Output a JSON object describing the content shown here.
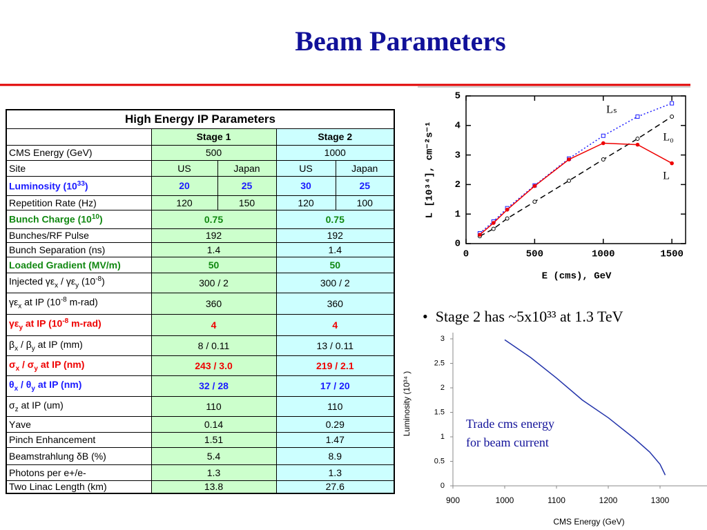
{
  "title": "Beam Parameters",
  "table": {
    "title": "High Energy IP Parameters",
    "columns": [
      "Stage 1",
      "Stage 2"
    ],
    "rows": [
      {
        "label": "CMS Energy (GeV)",
        "stage1": [
          "500"
        ],
        "stage2": [
          "1000"
        ]
      },
      {
        "label": "Site",
        "stage1": [
          "US",
          "Japan"
        ],
        "stage2": [
          "US",
          "Japan"
        ]
      },
      {
        "label": [
          {
            "text": "Luminosity (10"
          },
          {
            "sup": "33"
          },
          {
            "text": ")"
          }
        ],
        "stage1": [
          "20",
          "25"
        ],
        "stage2": [
          "30",
          "25"
        ],
        "color": "#1a1aff"
      },
      {
        "label": "Repetition Rate (Hz)",
        "stage1": [
          "120",
          "150"
        ],
        "stage2": [
          "120",
          "100"
        ]
      },
      {
        "label": [
          {
            "text": "Bunch Charge (10"
          },
          {
            "sup": "10"
          },
          {
            "text": ")"
          }
        ],
        "stage1": [
          "0.75"
        ],
        "stage2": [
          "0.75"
        ],
        "color": "#118811"
      },
      {
        "label": "Bunches/RF Pulse",
        "stage1": [
          "192"
        ],
        "stage2": [
          "192"
        ]
      },
      {
        "label": "Bunch Separation (ns)",
        "stage1": [
          "1.4"
        ],
        "stage2": [
          "1.4"
        ]
      },
      {
        "label": "Loaded Gradient (MV/m)",
        "stage1": [
          "50"
        ],
        "stage2": [
          "50"
        ],
        "color": "#118811"
      },
      {
        "label": [
          {
            "text": "Injected γε"
          },
          {
            "sub": "x"
          },
          {
            "text": " / γε"
          },
          {
            "sub": "y"
          },
          {
            "text": " (10"
          },
          {
            "sup": "-8"
          },
          {
            "text": ")"
          }
        ],
        "stage1": [
          "300 / 2"
        ],
        "stage2": [
          "300 / 2"
        ]
      },
      {
        "label": [
          {
            "text": "γε"
          },
          {
            "sub": "x"
          },
          {
            "text": " at IP (10"
          },
          {
            "sup": "-8"
          },
          {
            "text": " m-rad)"
          }
        ],
        "stage1": [
          "360"
        ],
        "stage2": [
          "360"
        ]
      },
      {
        "label": [
          {
            "text": "γε"
          },
          {
            "sub": "y"
          },
          {
            "text": " at IP (10"
          },
          {
            "sup": "-8"
          },
          {
            "text": " m-rad)"
          }
        ],
        "stage1": [
          "4"
        ],
        "stage2": [
          "4"
        ],
        "color": "#ee0000"
      },
      {
        "label": [
          {
            "text": "β"
          },
          {
            "sub": "x"
          },
          {
            "text": " / β"
          },
          {
            "sub": "y"
          },
          {
            "text": " at IP (mm)"
          }
        ],
        "stage1": [
          "8 / 0.11"
        ],
        "stage2": [
          "13 / 0.11"
        ]
      },
      {
        "label": [
          {
            "text": "σ"
          },
          {
            "sub": "x"
          },
          {
            "text": " / σ"
          },
          {
            "sub": "y"
          },
          {
            "text": " at IP (nm)"
          }
        ],
        "stage1": [
          "243 / 3.0"
        ],
        "stage2": [
          "219 / 2.1"
        ],
        "color": "#ee0000"
      },
      {
        "label": [
          {
            "text": "θ"
          },
          {
            "sub": "x"
          },
          {
            "text": " / θ"
          },
          {
            "sub": "y"
          },
          {
            "text": " at IP (nm)"
          }
        ],
        "stage1": [
          "32 / 28"
        ],
        "stage2": [
          "17 / 20"
        ],
        "color": "#1a1aff"
      },
      {
        "label": [
          {
            "text": "σ"
          },
          {
            "sub": "z"
          },
          {
            "text": " at IP (um)"
          }
        ],
        "stage1": [
          "110"
        ],
        "stage2": [
          "110"
        ]
      },
      {
        "label": "Υave",
        "stage1": [
          "0.14"
        ],
        "stage2": [
          "0.29"
        ]
      },
      {
        "label": "Pinch Enhancement",
        "stage1": [
          "1.51"
        ],
        "stage2": [
          "1.47"
        ]
      },
      {
        "label": "Beamstrahlung δB (%)",
        "stage1": [
          "5.4"
        ],
        "stage2": [
          "8.9"
        ]
      },
      {
        "label": "Photons per e+/e-",
        "stage1": [
          "1.3"
        ],
        "stage2": [
          "1.3"
        ]
      },
      {
        "label": "Two Linac Length (km)",
        "stage1": [
          "13.8"
        ],
        "stage2": [
          "27.6"
        ]
      }
    ]
  },
  "bullet": "Stage 2 has ~5x10³³ at 1.3 TeV",
  "chart_data": [
    {
      "type": "line",
      "x_label": "E (cms), GeV",
      "y_label": "L [10³⁴], cm⁻²s⁻¹",
      "x": [
        100,
        200,
        300,
        500,
        750,
        1000,
        1250,
        1500
      ],
      "xlim": [
        0,
        1600
      ],
      "xticks": [
        0,
        500,
        1000,
        1500
      ],
      "ylim": [
        0,
        5
      ],
      "yticks": [
        0,
        1,
        2,
        3,
        4,
        5
      ],
      "series": [
        {
          "name": "Lₛ",
          "color": "#1a1aff",
          "dash": "dotted",
          "marker": "square",
          "values": [
            0.35,
            0.75,
            1.2,
            1.97,
            2.88,
            3.65,
            4.3,
            4.75
          ]
        },
        {
          "name": "L₀",
          "color": "#000000",
          "dash": "dashed",
          "marker": "circle",
          "values": [
            0.25,
            0.5,
            0.85,
            1.42,
            2.13,
            2.85,
            3.55,
            4.3
          ]
        },
        {
          "name": "L",
          "color": "#ee0000",
          "dash": "solid",
          "marker": "dot",
          "values": [
            0.3,
            0.7,
            1.15,
            1.95,
            2.85,
            3.4,
            3.35,
            2.72
          ]
        }
      ]
    },
    {
      "type": "line",
      "x_label": "CMS Energy (GeV)",
      "y_label": "Luminosity (10³⁴ )",
      "x": [
        1000,
        1050,
        1100,
        1150,
        1200,
        1250,
        1280,
        1300,
        1310
      ],
      "values": [
        2.98,
        2.62,
        2.2,
        1.75,
        1.39,
        0.97,
        0.69,
        0.44,
        0.22
      ],
      "color": "#2233aa",
      "xlim": [
        900,
        1400
      ],
      "xticks": [
        900,
        1000,
        1100,
        1200,
        1300
      ],
      "ylim": [
        0,
        3
      ],
      "yticks": [
        0,
        {
          "value": 0.5,
          "label": "0.5"
        },
        1,
        1.5,
        2,
        2.5,
        3
      ],
      "annotation": [
        "Trade cms energy",
        "for beam current"
      ]
    }
  ]
}
